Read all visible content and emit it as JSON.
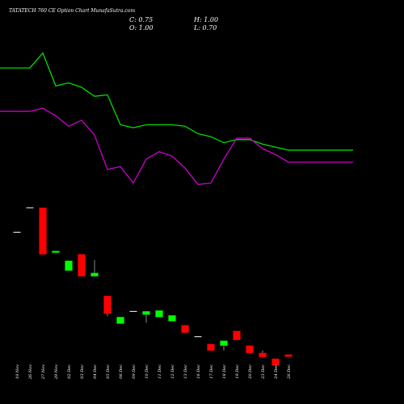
{
  "header": {
    "title": "TATATECH 760  CE Option  Chart MunafaSutra.com",
    "close": "C: 0.75",
    "open": "O: 1.00",
    "high": "H: 1.00",
    "low": "L: 0.70"
  },
  "colors": {
    "background": "#000000",
    "up": "#00ff00",
    "down": "#ff0000",
    "doji": "#ffffff",
    "line_upper": "#00dd00",
    "line_lower": "#cc00cc"
  },
  "chart_data": {
    "type": "candlestick",
    "price_range": [
      0,
      20
    ],
    "categories": [
      "19 Nov",
      "26 Nov",
      "27 Nov",
      "29 Nov",
      "02 Dec",
      "03 Dec",
      "04 Dec",
      "05 Dec",
      "06 Dec",
      "09 Dec",
      "10 Dec",
      "11 Dec",
      "12 Dec",
      "13 Dec",
      "16 Dec",
      "17 Dec",
      "18 Dec",
      "19 Dec",
      "20 Dec",
      "23 Dec",
      "24 Dec",
      "26 Dec"
    ],
    "ohlc": [
      {
        "o": 16.0,
        "h": 16.0,
        "l": 16.0,
        "c": 16.0
      },
      {
        "o": 19.0,
        "h": 19.0,
        "l": 19.0,
        "c": 19.0
      },
      {
        "o": 19.0,
        "h": 19.0,
        "l": 13.3,
        "c": 13.3
      },
      {
        "o": 13.5,
        "h": 13.7,
        "l": 13.5,
        "c": 13.7
      },
      {
        "o": 11.3,
        "h": 12.5,
        "l": 11.3,
        "c": 12.5
      },
      {
        "o": 13.3,
        "h": 13.3,
        "l": 10.6,
        "c": 10.6
      },
      {
        "o": 10.6,
        "h": 12.6,
        "l": 10.6,
        "c": 11.0
      },
      {
        "o": 8.2,
        "h": 8.2,
        "l": 5.7,
        "c": 6.0
      },
      {
        "o": 4.8,
        "h": 5.6,
        "l": 4.8,
        "c": 5.6
      },
      {
        "o": 6.3,
        "h": 6.3,
        "l": 6.3,
        "c": 6.3
      },
      {
        "o": 5.9,
        "h": 6.3,
        "l": 4.9,
        "c": 6.3
      },
      {
        "o": 5.6,
        "h": 6.4,
        "l": 5.6,
        "c": 6.4
      },
      {
        "o": 5.1,
        "h": 5.8,
        "l": 5.1,
        "c": 5.8
      },
      {
        "o": 4.6,
        "h": 4.6,
        "l": 3.7,
        "c": 3.7
      },
      {
        "o": 3.2,
        "h": 3.2,
        "l": 3.2,
        "c": 3.2
      },
      {
        "o": 2.3,
        "h": 2.3,
        "l": 1.5,
        "c": 1.5
      },
      {
        "o": 2.1,
        "h": 2.7,
        "l": 1.5,
        "c": 2.7
      },
      {
        "o": 3.9,
        "h": 3.9,
        "l": 2.8,
        "c": 2.8
      },
      {
        "o": 2.1,
        "h": 2.1,
        "l": 1.2,
        "c": 1.2
      },
      {
        "o": 1.2,
        "h": 1.5,
        "l": 0.7,
        "c": 0.7
      },
      {
        "o": 0.5,
        "h": 0.5,
        "l": -0.3,
        "c": -0.3
      },
      {
        "o": 1.0,
        "h": 1.0,
        "l": 0.7,
        "c": 0.75
      }
    ],
    "line_range": [
      0,
      100
    ],
    "series": [
      {
        "values": [
          87,
          87,
          97,
          75,
          77,
          74,
          68,
          69,
          49,
          47,
          49,
          49,
          49,
          48,
          43,
          41,
          37,
          39,
          39,
          36,
          34,
          32
        ]
      },
      {
        "values": [
          58,
          58,
          60,
          55,
          48,
          52,
          42,
          19,
          21,
          10,
          26,
          31,
          28,
          20,
          9,
          10,
          26,
          40,
          40,
          33,
          29,
          24
        ]
      }
    ]
  }
}
